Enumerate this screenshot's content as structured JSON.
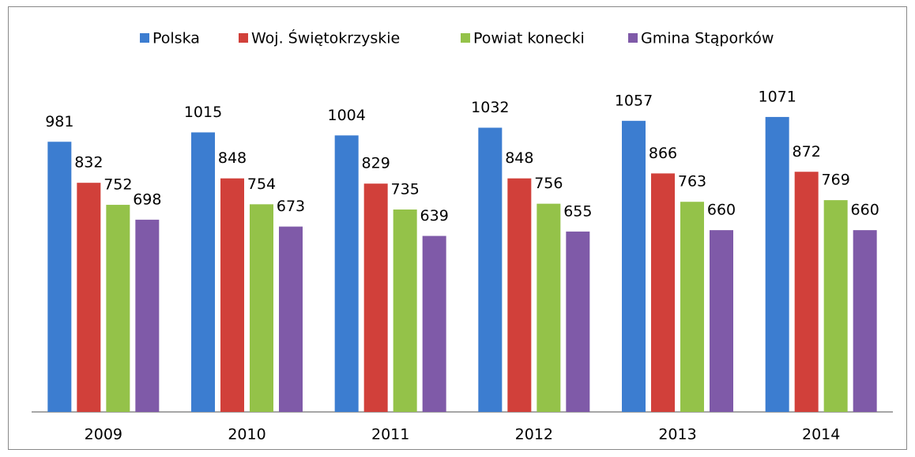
{
  "chart_data": {
    "type": "bar",
    "categories": [
      "2009",
      "2010",
      "2011",
      "2012",
      "2013",
      "2014"
    ],
    "series": [
      {
        "name": "Polska",
        "color": "#3c7dd0",
        "values": [
          981,
          1015,
          1004,
          1032,
          1057,
          1071
        ]
      },
      {
        "name": "Woj. Świętokrzyskie",
        "color": "#d1403a",
        "values": [
          832,
          848,
          829,
          848,
          866,
          872
        ]
      },
      {
        "name": "Powiat konecki",
        "color": "#94c249",
        "values": [
          752,
          754,
          735,
          756,
          763,
          769
        ]
      },
      {
        "name": "Gmina Stąporków",
        "color": "#7f5aa8",
        "values": [
          698,
          673,
          639,
          655,
          660,
          660
        ]
      }
    ],
    "ylim": [
      0,
      1200
    ],
    "legend": "top"
  }
}
